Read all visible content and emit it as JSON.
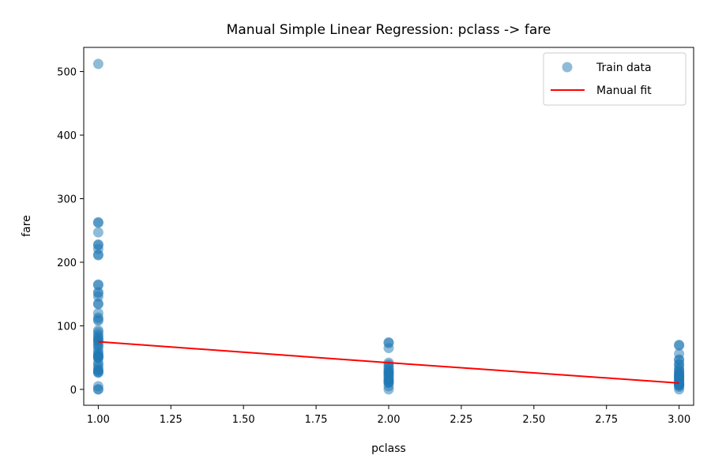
{
  "chart_data": {
    "type": "scatter",
    "title": "Manual Simple Linear Regression: pclass -> fare",
    "xlabel": "pclass",
    "ylabel": "fare",
    "xlim": [
      0.95,
      3.05
    ],
    "ylim": [
      -25,
      538
    ],
    "xticks": [
      1.0,
      1.25,
      1.5,
      1.75,
      2.0,
      2.25,
      2.5,
      2.75,
      3.0
    ],
    "xtick_labels": [
      "1.00",
      "1.25",
      "1.50",
      "1.75",
      "2.00",
      "2.25",
      "2.50",
      "2.75",
      "3.00"
    ],
    "yticks": [
      0,
      100,
      200,
      300,
      400,
      500
    ],
    "ytick_labels": [
      "0",
      "100",
      "200",
      "300",
      "400",
      "500"
    ],
    "grid": false,
    "legend": {
      "position": "top-right",
      "entries": [
        {
          "label": "Train data",
          "kind": "marker"
        },
        {
          "label": "Manual fit",
          "kind": "line"
        }
      ]
    },
    "series": [
      {
        "name": "Train data",
        "kind": "scatter",
        "color": "#1f77b4",
        "alpha": 0.5,
        "points": [
          [
            1,
            512
          ],
          [
            1,
            263
          ],
          [
            1,
            262
          ],
          [
            1,
            247
          ],
          [
            1,
            228
          ],
          [
            1,
            227
          ],
          [
            1,
            221
          ],
          [
            1,
            212
          ],
          [
            1,
            211
          ],
          [
            1,
            165
          ],
          [
            1,
            164
          ],
          [
            1,
            153
          ],
          [
            1,
            151
          ],
          [
            1,
            146
          ],
          [
            1,
            135
          ],
          [
            1,
            134
          ],
          [
            1,
            120
          ],
          [
            1,
            113
          ],
          [
            1,
            110
          ],
          [
            1,
            108
          ],
          [
            1,
            93
          ],
          [
            1,
            90
          ],
          [
            1,
            86
          ],
          [
            1,
            83
          ],
          [
            1,
            80
          ],
          [
            1,
            78
          ],
          [
            1,
            77
          ],
          [
            1,
            75
          ],
          [
            1,
            71
          ],
          [
            1,
            69
          ],
          [
            1,
            66
          ],
          [
            1,
            61
          ],
          [
            1,
            57
          ],
          [
            1,
            55
          ],
          [
            1,
            53
          ],
          [
            1,
            52
          ],
          [
            1,
            51
          ],
          [
            1,
            50
          ],
          [
            1,
            49
          ],
          [
            1,
            42
          ],
          [
            1,
            39
          ],
          [
            1,
            35
          ],
          [
            1,
            31
          ],
          [
            1,
            30
          ],
          [
            1,
            28
          ],
          [
            1,
            27
          ],
          [
            1,
            26
          ],
          [
            1,
            5
          ],
          [
            1,
            0
          ],
          [
            1,
            0
          ],
          [
            2,
            74
          ],
          [
            2,
            73
          ],
          [
            2,
            65
          ],
          [
            2,
            42
          ],
          [
            2,
            39
          ],
          [
            2,
            36
          ],
          [
            2,
            33
          ],
          [
            2,
            30
          ],
          [
            2,
            29
          ],
          [
            2,
            27
          ],
          [
            2,
            26
          ],
          [
            2,
            24
          ],
          [
            2,
            23
          ],
          [
            2,
            21
          ],
          [
            2,
            19
          ],
          [
            2,
            16
          ],
          [
            2,
            15
          ],
          [
            2,
            13
          ],
          [
            2,
            12
          ],
          [
            2,
            11
          ],
          [
            2,
            10
          ],
          [
            2,
            5
          ],
          [
            2,
            0
          ],
          [
            3,
            70
          ],
          [
            3,
            69
          ],
          [
            3,
            56
          ],
          [
            3,
            47
          ],
          [
            3,
            46
          ],
          [
            3,
            40
          ],
          [
            3,
            39
          ],
          [
            3,
            34
          ],
          [
            3,
            31
          ],
          [
            3,
            29
          ],
          [
            3,
            27
          ],
          [
            3,
            25
          ],
          [
            3,
            24
          ],
          [
            3,
            22
          ],
          [
            3,
            21
          ],
          [
            3,
            20
          ],
          [
            3,
            19
          ],
          [
            3,
            17
          ],
          [
            3,
            16
          ],
          [
            3,
            15
          ],
          [
            3,
            14
          ],
          [
            3,
            12
          ],
          [
            3,
            10
          ],
          [
            3,
            9
          ],
          [
            3,
            8
          ],
          [
            3,
            8
          ],
          [
            3,
            7
          ],
          [
            3,
            7
          ],
          [
            3,
            6
          ],
          [
            3,
            4
          ],
          [
            3,
            0
          ]
        ]
      },
      {
        "name": "Manual fit",
        "kind": "line",
        "color": "#ff0000",
        "points": [
          [
            1,
            75
          ],
          [
            2,
            42
          ],
          [
            3,
            10
          ]
        ]
      }
    ]
  }
}
